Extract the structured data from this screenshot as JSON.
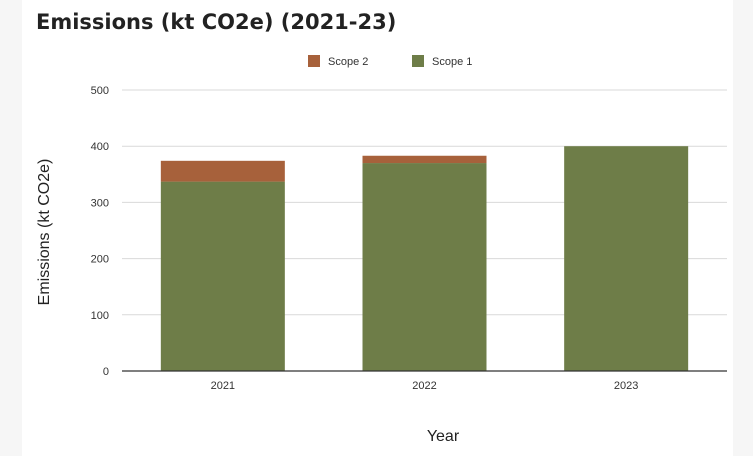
{
  "chart_data": {
    "type": "bar",
    "stacked": true,
    "title": "Emissions (kt CO2e) (2021-23)",
    "xlabel": "Year",
    "ylabel": "Emissions (kt CO2e)",
    "categories": [
      "2021",
      "2022",
      "2023"
    ],
    "ylim": [
      0,
      500
    ],
    "yticks": [
      0,
      100,
      200,
      300,
      400,
      500
    ],
    "grid": true,
    "legend_position": "top-center",
    "series": [
      {
        "name": "Scope 1",
        "values": [
          337,
          370,
          400
        ],
        "color": "#6e7d48"
      },
      {
        "name": "Scope 2",
        "values": [
          37,
          13,
          0
        ],
        "color": "#a7613b"
      }
    ],
    "legend_order": [
      "Scope 2",
      "Scope 1"
    ]
  }
}
